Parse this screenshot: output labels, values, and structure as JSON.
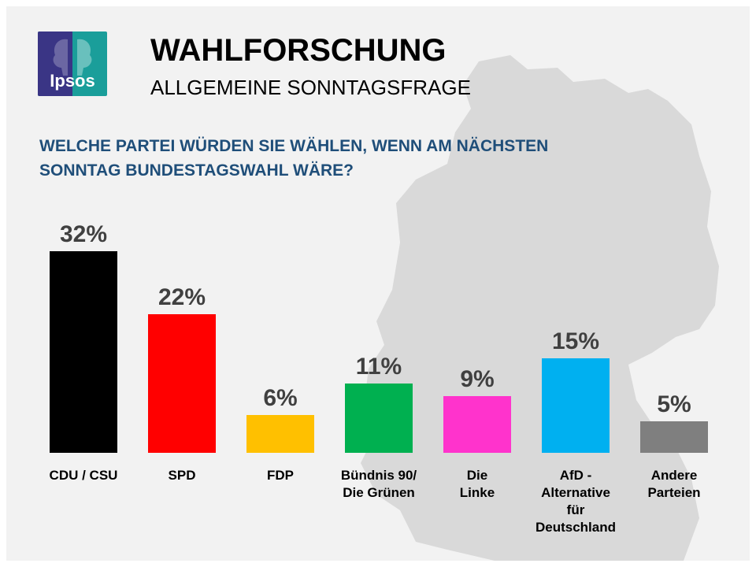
{
  "header": {
    "logo_text": "Ipsos",
    "title": "WAHLFORSCHUNG",
    "subtitle": "ALLGEMEINE SONNTAGSFRAGE"
  },
  "question": {
    "line1": "WELCHE PARTEI WÜRDEN SIE WÄHLEN, WENN AM NÄCHSTEN",
    "line2": "SONNTAG BUNDESTAGSWAHL WÄRE?"
  },
  "chart_data": {
    "type": "bar",
    "title": "",
    "xlabel": "",
    "ylabel": "",
    "ylim": [
      0,
      32
    ],
    "grid": false,
    "value_suffix": "%",
    "categories": [
      [
        "CDU / CSU"
      ],
      [
        "SPD"
      ],
      [
        "FDP"
      ],
      [
        "Bündnis 90/",
        "Die Grünen"
      ],
      [
        "Die",
        "Linke"
      ],
      [
        "AfD -",
        "Alternative",
        "für",
        "Deutschland"
      ],
      [
        "Andere",
        "Parteien"
      ]
    ],
    "values": [
      32,
      22,
      6,
      11,
      9,
      15,
      5
    ],
    "data_labels": [
      "32%",
      "22%",
      "6%",
      "11%",
      "9%",
      "15%",
      "5%"
    ],
    "colors": [
      "#000000",
      "#ff0000",
      "#ffc000",
      "#00b050",
      "#ff33cc",
      "#00b0f0",
      "#7f7f7f"
    ]
  },
  "colors": {
    "question_text": "#1f4e79",
    "background": "#f2f2f2",
    "map": "#d9d9d9"
  }
}
